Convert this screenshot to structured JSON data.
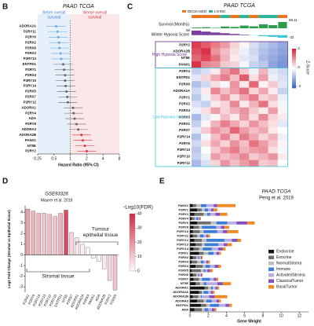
{
  "chart_data": [
    {
      "type": "forest",
      "panel": "B",
      "title": "PAAD TCGA",
      "annotations": [
        [
          "Better overall",
          "survival"
        ],
        [
          "Worse overall",
          "survival"
        ]
      ],
      "categories": [
        "ADORA2A",
        "P2RY11",
        "P2RY6",
        "P2RX2",
        "P2RX6",
        "P2RX3",
        "P2RY13",
        "ENTPD1",
        "P2RY1",
        "P2RX4",
        "P2RY10",
        "P2RY14",
        "P2RX5",
        "P2RX7",
        "P2RY12",
        "ADORA1",
        "P2RY4",
        "ADA",
        "P2RY8",
        "ADORA3",
        "ADORA2B",
        "PANX1",
        "NT5E",
        "P2RY2"
      ],
      "values": [
        0.55,
        0.58,
        0.6,
        0.62,
        0.63,
        0.66,
        0.68,
        0.74,
        0.77,
        0.8,
        0.8,
        0.82,
        0.85,
        0.88,
        0.9,
        1.12,
        1.15,
        1.2,
        1.3,
        1.4,
        1.6,
        1.7,
        1.85,
        2.0
      ],
      "ci_low": [
        0.36,
        0.38,
        0.4,
        0.41,
        0.42,
        0.44,
        0.45,
        0.49,
        0.51,
        0.53,
        0.53,
        0.55,
        0.57,
        0.59,
        0.6,
        0.75,
        0.77,
        0.8,
        0.87,
        0.93,
        1.07,
        1.13,
        1.23,
        1.33
      ],
      "ci_high": [
        0.83,
        0.87,
        0.9,
        0.93,
        0.95,
        0.99,
        1.02,
        1.11,
        1.16,
        1.2,
        1.2,
        1.23,
        1.28,
        1.32,
        1.35,
        1.68,
        1.73,
        1.8,
        1.95,
        2.1,
        2.4,
        2.55,
        2.78,
        3.0
      ],
      "colors": [
        "#6aa8e0",
        "#6aa8e0",
        "#6aa8e0",
        "#6aa8e0",
        "#6aa8e0",
        "#6aa8e0",
        "#6aa8e0",
        "#666666",
        "#666666",
        "#666666",
        "#666666",
        "#666666",
        "#666666",
        "#666666",
        "#666666",
        "#666666",
        "#666666",
        "#666666",
        "#666666",
        "#666666",
        "#e03040",
        "#e03040",
        "#e03040",
        "#e03040"
      ],
      "xlabel": "Hazard Ratio (95% CI)",
      "xscale": "log",
      "xlim": [
        0.25,
        8
      ],
      "xticks": [
        0.25,
        0.5,
        1,
        2,
        4,
        8
      ],
      "reference_line": 1
    },
    {
      "type": "heatmap",
      "panel": "C",
      "title": "PAAD TCGA",
      "status_legend": [
        {
          "name": "DECEASED",
          "color": "#e87722"
        },
        {
          "name": "LIVING",
          "color": "#2bb59a"
        }
      ],
      "status": [
        "DECEASED",
        "DECEASED",
        "DECEASED",
        "LIVING",
        "DECEASED",
        "LIVING",
        "DECEASED",
        "LIVING",
        "LIVING",
        "DECEASED"
      ],
      "survival_label": "Survival (Months)",
      "survival": [
        8,
        12,
        5,
        20,
        15,
        30,
        22,
        45,
        35,
        70
      ],
      "survival_lim": [
        0,
        88.11
      ],
      "hypoxia_label": "Winter Hypoxia Score",
      "hypoxia": [
        56,
        44,
        33,
        24,
        15,
        7,
        -2,
        -12,
        -22,
        -32
      ],
      "hypoxia_lim": [
        -32,
        56
      ],
      "groups": [
        {
          "name": "High Hypoxia Score",
          "color": "#6a2c91",
          "rows": [
            "P2RY2",
            "ADORA2B",
            "NT5E",
            "PANX1"
          ],
          "values": [
            [
              1.8,
              1.5,
              1.2,
              0.9,
              0.4,
              0.1,
              -0.4,
              -0.7,
              -0.9,
              -1.1
            ],
            [
              1.6,
              1.9,
              1.0,
              0.6,
              0.3,
              -0.2,
              -0.5,
              -0.8,
              -1.0,
              -1.2
            ],
            [
              1.4,
              1.7,
              1.3,
              0.7,
              0.2,
              -0.3,
              -0.4,
              -0.9,
              -1.1,
              -1.3
            ],
            [
              1.9,
              1.1,
              1.0,
              0.5,
              0.4,
              -0.1,
              -0.6,
              -0.7,
              -1.2,
              -1.4
            ]
          ]
        },
        {
          "name": "Low Hypoxia Score",
          "color": "#3cc6d8",
          "rows": [
            "P2RY4",
            "ENTPD1",
            "P2RX6",
            "ADORA2A",
            "P2RY1",
            "P2RX2",
            "P2RX4",
            "P2RX3",
            "P2RX1",
            "P2RX7",
            "P2RY14",
            "P2RY6",
            "P2RY13",
            "P2RY10",
            "P2RY12"
          ],
          "values": [
            [
              -0.6,
              -0.4,
              0.2,
              0.9,
              1.3,
              0.5,
              -0.2,
              0.7,
              -0.3,
              -0.5
            ],
            [
              -0.3,
              0.4,
              0.8,
              1.2,
              0.6,
              1.5,
              0.3,
              0.9,
              -0.2,
              -0.4
            ],
            [
              -0.8,
              -0.5,
              0.3,
              -0.1,
              1.0,
              0.2,
              1.4,
              0.1,
              0.5,
              -0.3
            ],
            [
              -0.5,
              0.2,
              1.1,
              0.6,
              0.9,
              1.3,
              0.4,
              0.8,
              0.2,
              -0.6
            ],
            [
              -0.7,
              -0.2,
              0.5,
              1.0,
              0.3,
              0.8,
              1.2,
              0.4,
              0.6,
              -0.2
            ],
            [
              -0.4,
              -0.6,
              0.2,
              0.4,
              1.1,
              0.2,
              0.7,
              1.3,
              0.3,
              -0.1
            ],
            [
              -0.2,
              0.3,
              0.9,
              0.4,
              0.7,
              1.0,
              0.5,
              0.2,
              0.9,
              0.1
            ],
            [
              -0.9,
              -0.3,
              0.1,
              0.6,
              0.2,
              0.9,
              0.3,
              1.1,
              0.4,
              0.2
            ],
            [
              -0.6,
              0.1,
              0.7,
              1.2,
              0.8,
              0.4,
              1.0,
              0.6,
              0.3,
              -0.3
            ],
            [
              -0.3,
              0.5,
              1.0,
              0.7,
              1.4,
              0.9,
              0.6,
              0.8,
              0.2,
              0.0
            ],
            [
              -0.8,
              -0.1,
              0.6,
              1.1,
              0.5,
              1.2,
              0.8,
              0.4,
              0.7,
              -0.2
            ],
            [
              -0.5,
              0.3,
              0.8,
              0.4,
              1.0,
              0.6,
              1.3,
              0.9,
              0.5,
              0.1
            ],
            [
              -0.7,
              0.0,
              0.5,
              0.9,
              1.2,
              0.7,
              0.9,
              1.0,
              0.3,
              -0.1
            ],
            [
              -0.6,
              -0.2,
              0.9,
              0.6,
              0.8,
              1.1,
              0.5,
              0.7,
              1.0,
              0.2
            ],
            [
              -0.9,
              -0.4,
              0.4,
              1.0,
              0.6,
              0.9,
              1.2,
              0.5,
              0.6,
              0.0
            ]
          ]
        }
      ],
      "zlabel": "Z-Score",
      "zlim": [
        -2,
        2
      ],
      "zticks": [
        2,
        0,
        -2
      ],
      "colormap": [
        "#3f66c7",
        "#ffffff",
        "#d7263d"
      ]
    },
    {
      "type": "bar",
      "panel": "D",
      "title": "GSE93326",
      "subtitle": "Maurer et al. 2019",
      "categories": [
        "P2RX1",
        "P2RY6",
        "P2RY14",
        "P2RY13",
        "P2RY12",
        "P2RY10",
        "ENTPD1",
        "NT5E",
        "P2RX7",
        "ADORA1",
        "ADORA2A",
        "P2RX4",
        "PANX1",
        "ADA",
        "ADORA2B",
        "P2RY2",
        "P2RX5"
      ],
      "values": [
        4.3,
        4.1,
        3.9,
        3.9,
        3.8,
        3.6,
        3.9,
        4.2,
        2.1,
        1.6,
        1.0,
        0.7,
        -0.3,
        -0.6,
        -1.3,
        -2.4,
        -3.3
      ],
      "fdr": [
        18,
        15,
        14,
        12,
        13,
        12,
        15,
        35,
        8,
        5,
        3,
        2,
        1,
        2,
        4,
        8,
        12
      ],
      "clabel": "-Log10(FDR)",
      "clim": [
        0,
        40
      ],
      "cticks": [
        0,
        10,
        20,
        30,
        40
      ],
      "colormap": [
        "#ffffff",
        "#d22f4a"
      ],
      "ylabel": "Log2 Fold Change (Stromal vs Epithelial tissue)",
      "ylim": [
        -3.5,
        4.6
      ],
      "yticks": [
        -3,
        -2,
        -1,
        0,
        1,
        2,
        3,
        4
      ],
      "annotations": [
        [
          "Stromal tissue"
        ],
        [
          "Tumour",
          "epithelial tissue"
        ]
      ]
    },
    {
      "type": "bar",
      "panel": "E",
      "title": "PAAD TCGA",
      "subtitle": "Peng et al. 2019",
      "orientation": "horizontal",
      "stacked": true,
      "legend": "right",
      "categories": [
        "PANX1",
        "P2RY1",
        "P2RY2",
        "P2RY4",
        "P2RY6",
        "P2RY8",
        "P2RY10",
        "P2RY11",
        "P2RY12",
        "P2RY13",
        "P2RY14",
        "P2RX1",
        "P2RX2",
        "P2RX3",
        "P2RX4",
        "P2RX5",
        "P2RX6",
        "P2RX7",
        "NT5E",
        "ADORA1",
        "ADORA2A",
        "ADORA2B",
        "ADORA3",
        "ENTPD1",
        "ADA"
      ],
      "series": [
        {
          "name": "Endocrine",
          "color": "#111111",
          "values": [
            0.3,
            0.8,
            0.5,
            0.2,
            0.8,
            0.4,
            0.3,
            0.3,
            0.5,
            0.6,
            0.4,
            1.0,
            0.3,
            0.2,
            0.6,
            0.2,
            0.3,
            0.4,
            0.6,
            1.6,
            1.0,
            0.3,
            0.8,
            1.2,
            0.5
          ]
        },
        {
          "name": "Exocrine",
          "color": "#6e6e6e",
          "values": [
            0.4,
            0.5,
            1.0,
            0.3,
            1.5,
            0.6,
            0.8,
            0.5,
            0.8,
            0.7,
            0.6,
            0.5,
            0.4,
            0.6,
            0.8,
            1.0,
            0.4,
            0.6,
            0.5,
            0.4,
            0.3,
            0.6,
            0.7,
            0.6,
            0.8
          ]
        },
        {
          "name": "NormalStroma",
          "color": "#bdbdbd",
          "values": [
            0.5,
            0.3,
            0.4,
            0.2,
            0.6,
            0.3,
            0.4,
            0.3,
            0.5,
            0.3,
            0.4,
            0.5,
            0.2,
            0.4,
            0.3,
            0.3,
            0.2,
            0.3,
            0.4,
            0.3,
            0.2,
            0.3,
            0.3,
            0.4,
            0.3
          ]
        },
        {
          "name": "Immune",
          "color": "#3b7dd8",
          "values": [
            0.6,
            0.4,
            0.3,
            0.2,
            1.2,
            1.6,
            1.5,
            0.4,
            2.0,
            1.5,
            1.0,
            0.6,
            0.1,
            0.3,
            0.5,
            0.2,
            0.1,
            0.9,
            0.3,
            0.2,
            0.5,
            0.1,
            0.6,
            1.0,
            0.4
          ]
        },
        {
          "name": "ActivatedStroma",
          "color": "#b7aee6",
          "values": [
            0.8,
            0.3,
            0.6,
            0.1,
            1.0,
            0.5,
            0.6,
            0.3,
            0.8,
            0.6,
            0.7,
            0.3,
            0.2,
            0.3,
            0.5,
            0.2,
            0.2,
            0.4,
            1.2,
            0.3,
            0.3,
            0.8,
            0.5,
            0.7,
            0.4
          ]
        },
        {
          "name": "ClassicalTumor",
          "color": "#8a4fbf",
          "values": [
            0.4,
            0.3,
            0.5,
            0.1,
            1.2,
            0.4,
            0.5,
            0.2,
            0.6,
            0.4,
            0.5,
            0.3,
            0.1,
            0.2,
            0.4,
            0.3,
            0.1,
            0.3,
            0.6,
            0.2,
            0.2,
            0.6,
            0.3,
            0.4,
            0.3
          ]
        },
        {
          "name": "BasalTumor",
          "color": "#f08a24",
          "values": [
            2.0,
            0.4,
            0.8,
            0.1,
            0.8,
            0.5,
            1.2,
            0.2,
            0.4,
            0.5,
            0.3,
            0.2,
            0.1,
            0.2,
            0.3,
            0.3,
            0.1,
            0.2,
            0.9,
            0.2,
            0.2,
            1.4,
            0.2,
            0.3,
            0.2
          ]
        }
      ],
      "xlabel": "Gene Weight",
      "xlim": [
        0,
        13
      ],
      "xticks": [
        0,
        2,
        4,
        6,
        8,
        10,
        12
      ]
    }
  ]
}
